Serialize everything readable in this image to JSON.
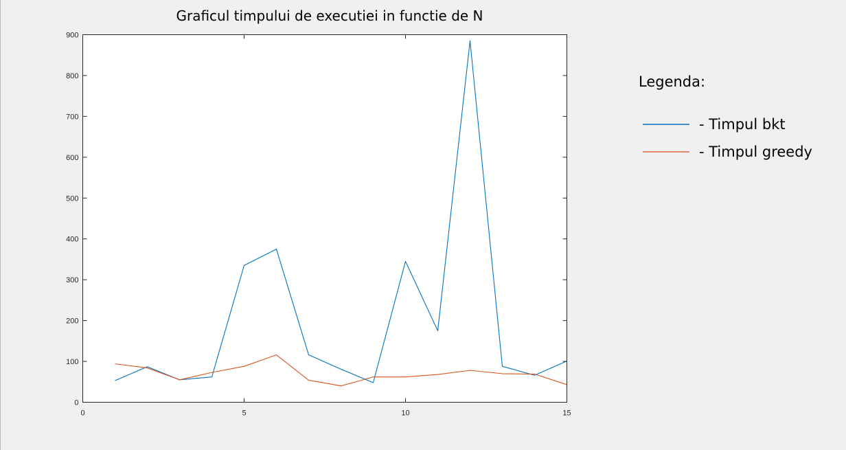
{
  "chart_data": {
    "type": "line",
    "title": "Graficul timpului de executiei in functie de N",
    "xlabel": "",
    "ylabel": "",
    "xlim": [
      0,
      15
    ],
    "ylim": [
      0,
      900
    ],
    "x_ticks": [
      0,
      5,
      10,
      15
    ],
    "y_ticks": [
      0,
      100,
      200,
      300,
      400,
      500,
      600,
      700,
      800,
      900
    ],
    "grid": false,
    "legend_placement": "outside-right",
    "x": [
      1,
      2,
      3,
      4,
      5,
      6,
      7,
      8,
      9,
      10,
      11,
      12,
      13,
      14,
      15
    ],
    "series": [
      {
        "name": "- Timpul bkt",
        "color": "#0072bd",
        "legend_color": "#3c8fd0",
        "values": [
          53,
          87,
          55,
          62,
          335,
          375,
          116,
          81,
          48,
          345,
          175,
          885,
          88,
          66,
          101
        ]
      },
      {
        "name": "- Timpul greedy",
        "color": "#d95319",
        "legend_color": "#e38667",
        "values": [
          94,
          84,
          55,
          73,
          88,
          116,
          54,
          40,
          62,
          62,
          68,
          78,
          70,
          69,
          43
        ]
      }
    ]
  },
  "legend": {
    "title": "Legenda:"
  }
}
